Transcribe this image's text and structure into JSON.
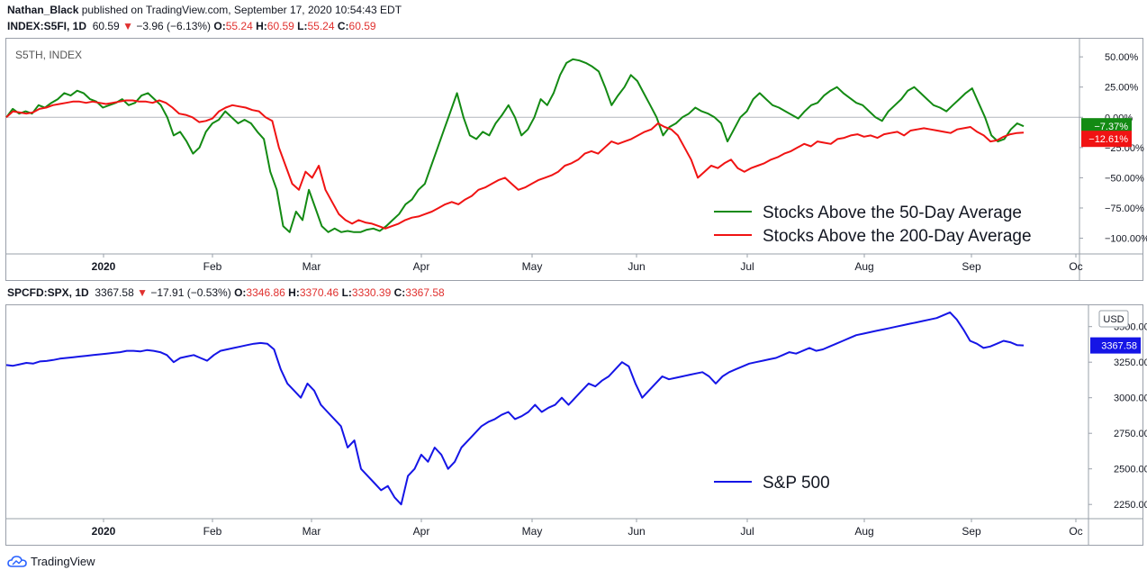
{
  "publish_line": {
    "author": "Nathan_Black",
    "rest": " published on TradingView.com, September 17, 2020 10:54:43 EDT"
  },
  "top_header": {
    "symbol": "INDEX:S5FI, 1D",
    "last": "60.59",
    "change": "−3.96 (−6.13%)",
    "o_label": "O:",
    "o": "55.24",
    "h_label": "H:",
    "h": "60.59",
    "l_label": "L:",
    "l": "55.24",
    "c_label": "C:",
    "c": "60.59"
  },
  "top_pane_label": "S5TH, INDEX",
  "bottom_header": {
    "symbol": "SPCFD:SPX, 1D",
    "last": "3367.58",
    "change": "−17.91 (−0.53%)",
    "o_label": "O:",
    "o": "3346.86",
    "h_label": "H:",
    "h": "3370.46",
    "l_label": "L:",
    "l": "3330.39",
    "c_label": "C:",
    "c": "3367.58"
  },
  "footer": {
    "brand": "TradingView"
  },
  "colors": {
    "green": "#138a13",
    "red": "#f01313",
    "blue": "#1515e6",
    "axis_text": "#131722"
  },
  "chart_data": [
    {
      "type": "line",
      "title": "",
      "ylim": [
        -113,
        65
      ],
      "y_ticks": [
        50,
        25,
        0,
        -25,
        -50,
        -75,
        -100
      ],
      "y_tick_labels": [
        "50.00%",
        "25.00%",
        "0.00%",
        "−25.00%",
        "−50.00%",
        "−75.00%",
        "−100.00%"
      ],
      "x_tick_labels": [
        "2020",
        "Feb",
        "Mar",
        "Apr",
        "May",
        "Jun",
        "Jul",
        "Aug",
        "Sep",
        "Oc"
      ],
      "legend_position": "bottom-right",
      "series": [
        {
          "name": "Stocks Above the 50-Day Average",
          "color": "#138a13",
          "last_label": "−7.37%",
          "values": [
            0,
            7,
            3,
            5,
            3,
            10,
            8,
            12,
            15,
            20,
            18,
            22,
            20,
            15,
            13,
            8,
            10,
            12,
            15,
            10,
            12,
            18,
            20,
            15,
            10,
            0,
            -15,
            -12,
            -20,
            -30,
            -25,
            -12,
            -5,
            -2,
            5,
            0,
            -5,
            -2,
            -5,
            -12,
            -18,
            -45,
            -60,
            -90,
            -95,
            -78,
            -85,
            -60,
            -75,
            -90,
            -95,
            -92,
            -95,
            -94,
            -95,
            -95,
            -93,
            -92,
            -94,
            -90,
            -85,
            -80,
            -72,
            -68,
            -60,
            -55,
            -40,
            -25,
            -10,
            5,
            20,
            0,
            -15,
            -18,
            -12,
            -15,
            -5,
            2,
            10,
            0,
            -15,
            -10,
            0,
            15,
            10,
            20,
            35,
            45,
            48,
            47,
            45,
            42,
            38,
            25,
            10,
            18,
            25,
            35,
            30,
            20,
            10,
            0,
            -15,
            -8,
            -5,
            0,
            3,
            8,
            5,
            3,
            0,
            -5,
            -20,
            -10,
            0,
            5,
            15,
            20,
            15,
            10,
            8,
            5,
            2,
            -1,
            5,
            10,
            12,
            18,
            22,
            25,
            20,
            16,
            12,
            10,
            5,
            0,
            -3,
            5,
            10,
            15,
            22,
            25,
            20,
            15,
            10,
            8,
            5,
            10,
            15,
            20,
            24,
            12,
            0,
            -15,
            -20,
            -18,
            -10,
            -5,
            -7.37
          ]
        },
        {
          "name": "Stocks Above the 200-Day Average",
          "color": "#f01313",
          "last_label": "−12.61%",
          "values": [
            0,
            5,
            4,
            3,
            4,
            7,
            8,
            10,
            11,
            12,
            13,
            13,
            12,
            13,
            12,
            11,
            12,
            13,
            14,
            14,
            13,
            13,
            12,
            14,
            12,
            8,
            3,
            2,
            0,
            -4,
            -3,
            -1,
            5,
            8,
            10,
            9,
            8,
            6,
            5,
            0,
            -3,
            -25,
            -40,
            -55,
            -60,
            -45,
            -50,
            -40,
            -60,
            -70,
            -80,
            -85,
            -88,
            -85,
            -87,
            -88,
            -90,
            -92,
            -90,
            -88,
            -85,
            -83,
            -82,
            -80,
            -78,
            -75,
            -72,
            -70,
            -72,
            -68,
            -65,
            -60,
            -58,
            -55,
            -52,
            -50,
            -55,
            -60,
            -58,
            -55,
            -52,
            -50,
            -48,
            -45,
            -40,
            -38,
            -35,
            -30,
            -28,
            -30,
            -25,
            -20,
            -22,
            -20,
            -18,
            -15,
            -12,
            -10,
            -5,
            -8,
            -10,
            -15,
            -25,
            -35,
            -50,
            -45,
            -40,
            -42,
            -38,
            -35,
            -42,
            -45,
            -42,
            -40,
            -38,
            -35,
            -33,
            -30,
            -28,
            -25,
            -22,
            -24,
            -20,
            -21,
            -22,
            -18,
            -17,
            -15,
            -14,
            -16,
            -15,
            -17,
            -14,
            -13,
            -12,
            -15,
            -11,
            -10,
            -9,
            -10,
            -11,
            -12,
            -13,
            -10,
            -9,
            -8,
            -12,
            -15,
            -20,
            -19,
            -16,
            -14,
            -13,
            -12.61
          ]
        }
      ]
    },
    {
      "type": "line",
      "title": "",
      "ylim": [
        2150,
        3650
      ],
      "y_unit": "USD",
      "y_ticks": [
        3500,
        3250,
        3000,
        2750,
        2500,
        2250
      ],
      "y_tick_labels": [
        "3500.00",
        "3250.00",
        "3000.00",
        "2750.00",
        "2500.00",
        "2250.00"
      ],
      "x_tick_labels": [
        "2020",
        "Feb",
        "Mar",
        "Apr",
        "May",
        "Jun",
        "Jul",
        "Aug",
        "Sep",
        "Oc"
      ],
      "legend_position": "bottom-right",
      "series": [
        {
          "name": "S&P 500",
          "color": "#1515e6",
          "last_label": "3367.58",
          "values": [
            3230,
            3225,
            3235,
            3245,
            3240,
            3255,
            3258,
            3265,
            3275,
            3280,
            3285,
            3290,
            3295,
            3300,
            3305,
            3310,
            3315,
            3320,
            3330,
            3330,
            3325,
            3335,
            3330,
            3320,
            3300,
            3250,
            3280,
            3290,
            3300,
            3280,
            3260,
            3300,
            3330,
            3340,
            3350,
            3360,
            3370,
            3380,
            3385,
            3380,
            3340,
            3200,
            3100,
            3050,
            3000,
            3100,
            3050,
            2950,
            2900,
            2850,
            2800,
            2650,
            2700,
            2500,
            2450,
            2400,
            2350,
            2380,
            2300,
            2250,
            2450,
            2500,
            2600,
            2550,
            2650,
            2600,
            2500,
            2550,
            2650,
            2700,
            2750,
            2800,
            2830,
            2850,
            2880,
            2900,
            2850,
            2870,
            2900,
            2950,
            2900,
            2930,
            2950,
            3000,
            2950,
            3000,
            3050,
            3100,
            3080,
            3120,
            3150,
            3200,
            3250,
            3220,
            3100,
            3000,
            3050,
            3100,
            3150,
            3130,
            3140,
            3150,
            3160,
            3170,
            3180,
            3150,
            3100,
            3150,
            3180,
            3200,
            3220,
            3240,
            3250,
            3260,
            3270,
            3280,
            3300,
            3320,
            3310,
            3330,
            3350,
            3330,
            3340,
            3360,
            3380,
            3400,
            3420,
            3440,
            3450,
            3460,
            3470,
            3480,
            3490,
            3500,
            3510,
            3520,
            3530,
            3540,
            3550,
            3560,
            3580,
            3600,
            3550,
            3480,
            3400,
            3380,
            3350,
            3360,
            3380,
            3400,
            3390,
            3370,
            3367.58
          ]
        }
      ]
    }
  ]
}
